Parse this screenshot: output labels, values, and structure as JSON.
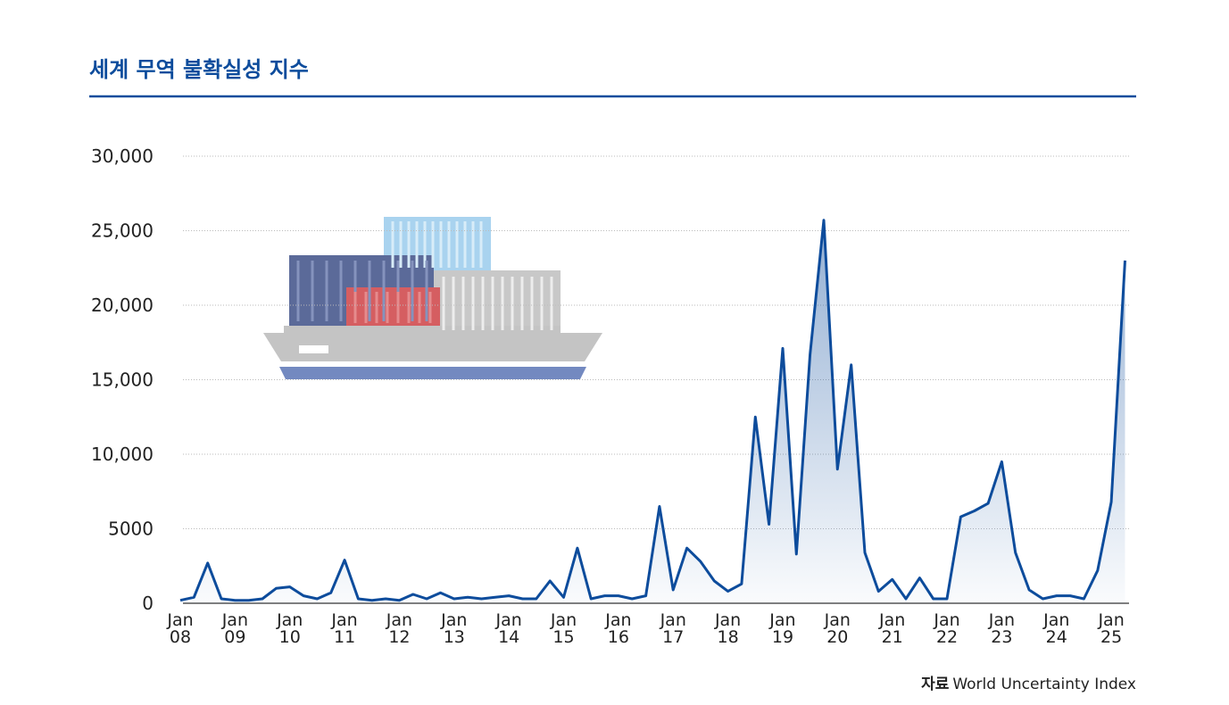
{
  "chart_data": {
    "type": "line",
    "title": "세계 무역 불확실성 지수",
    "source_label": "자료",
    "source": "World Uncertainty Index",
    "color": "#0d4c9c",
    "categories": [
      "Jan\n08",
      null,
      null,
      null,
      "Jan\n09",
      null,
      null,
      null,
      "Jan\n10",
      null,
      null,
      null,
      "Jan\n11",
      null,
      null,
      null,
      "Jan\n12",
      null,
      null,
      null,
      "Jan\n13",
      null,
      null,
      null,
      "Jan\n14",
      null,
      null,
      null,
      "Jan\n15",
      null,
      null,
      null,
      "Jan\n16",
      null,
      null,
      null,
      "Jan\n17",
      null,
      null,
      null,
      "Jan\n18",
      null,
      null,
      null,
      "Jan\n19",
      null,
      null,
      null,
      "Jan\n20",
      null,
      null,
      null,
      "Jan\n21",
      null,
      null,
      null,
      "Jan\n22",
      null,
      null,
      null,
      "Jan\n23",
      null,
      null,
      null,
      "Jan\n24",
      null,
      null,
      null,
      "Jan\n25",
      null
    ],
    "values": [
      200,
      400,
      2700,
      300,
      200,
      200,
      300,
      1000,
      1100,
      500,
      300,
      700,
      2900,
      300,
      200,
      300,
      200,
      600,
      300,
      700,
      300,
      400,
      300,
      400,
      500,
      300,
      300,
      1500,
      400,
      3700,
      300,
      500,
      500,
      300,
      500,
      6500,
      900,
      3700,
      2800,
      1500,
      800,
      1300,
      12500,
      5300,
      17100,
      3300,
      16700,
      25700,
      9000,
      16000,
      3400,
      800,
      1600,
      300,
      1700,
      300,
      300,
      5800,
      6200,
      6700,
      9500,
      3400,
      900,
      300,
      500,
      500,
      300,
      2200,
      6800,
      23000
    ],
    "ylim": [
      0,
      30000
    ],
    "yticks": [
      0,
      5000,
      {
        "value": 10000,
        "label": "10,000"
      },
      {
        "value": 15000,
        "label": "15,000"
      },
      {
        "value": 20000,
        "label": "20,000"
      },
      {
        "value": 25000,
        "label": "25,000"
      },
      {
        "value": 30000,
        "label": "30,000"
      }
    ],
    "grid": true
  }
}
